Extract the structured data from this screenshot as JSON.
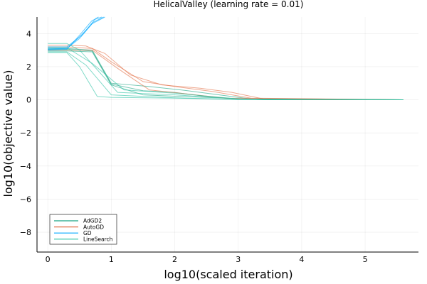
{
  "chart_data": {
    "type": "line",
    "title": "HelicalValley (learning rate = 0.01)",
    "xlabel": "log10(scaled iteration)",
    "ylabel": "log10(objective value)",
    "xlim": [
      -0.17,
      5.84
    ],
    "ylim": [
      -9.2,
      5.0
    ],
    "xticks": [
      0,
      1,
      2,
      3,
      4,
      5
    ],
    "yticks": [
      -8,
      -6,
      -4,
      -2,
      0,
      2,
      4
    ],
    "grid": true,
    "legend_position": "bottom-left",
    "series": [
      {
        "name": "AdGD2",
        "color": "#1aa583",
        "lines": [
          [
            [
              0,
              3.05
            ],
            [
              0.3,
              3.05
            ],
            [
              0.7,
              2.95
            ],
            [
              1.0,
              0.95
            ],
            [
              1.5,
              0.55
            ],
            [
              2.0,
              0.45
            ],
            [
              2.5,
              0.2
            ],
            [
              3.0,
              0.05
            ],
            [
              3.5,
              0.0
            ],
            [
              5.6,
              0.0
            ]
          ],
          [
            [
              0,
              3.1
            ],
            [
              0.3,
              3.1
            ],
            [
              0.7,
              3.0
            ],
            [
              1.0,
              1.0
            ],
            [
              1.6,
              0.8
            ],
            [
              2.2,
              0.55
            ],
            [
              2.7,
              0.3
            ],
            [
              3.2,
              0.05
            ],
            [
              5.6,
              0.0
            ]
          ],
          [
            [
              0,
              2.95
            ],
            [
              0.3,
              2.95
            ],
            [
              0.7,
              2.9
            ],
            [
              1.0,
              0.9
            ],
            [
              1.5,
              0.3
            ],
            [
              2.1,
              0.2
            ],
            [
              2.8,
              0.1
            ],
            [
              3.4,
              0.0
            ],
            [
              5.6,
              0.0
            ]
          ]
        ]
      },
      {
        "name": "AutoGD",
        "color": "#e26f46",
        "lines": [
          [
            [
              0,
              3.3
            ],
            [
              0.3,
              3.3
            ],
            [
              0.6,
              3.25
            ],
            [
              0.9,
              2.8
            ],
            [
              1.3,
              1.5
            ],
            [
              1.8,
              0.9
            ],
            [
              2.4,
              0.7
            ],
            [
              2.9,
              0.45
            ],
            [
              3.4,
              0.05
            ],
            [
              4.0,
              0.0
            ],
            [
              5.6,
              0.0
            ]
          ],
          [
            [
              0,
              3.2
            ],
            [
              0.3,
              3.2
            ],
            [
              0.7,
              3.1
            ],
            [
              1.0,
              2.3
            ],
            [
              1.5,
              1.1
            ],
            [
              2.0,
              0.8
            ],
            [
              2.6,
              0.5
            ],
            [
              3.2,
              0.1
            ],
            [
              5.6,
              0.0
            ]
          ],
          [
            [
              0,
              3.0
            ],
            [
              0.3,
              3.0
            ],
            [
              0.7,
              3.0
            ],
            [
              1.1,
              1.9
            ],
            [
              1.6,
              0.6
            ],
            [
              2.2,
              0.35
            ],
            [
              2.8,
              0.1
            ],
            [
              5.6,
              0.0
            ]
          ]
        ]
      },
      {
        "name": "GD",
        "color": "#00a9ff",
        "lines": [
          [
            [
              0,
              3.1
            ],
            [
              0.3,
              3.1
            ],
            [
              0.5,
              3.8
            ],
            [
              0.7,
              4.6
            ],
            [
              0.9,
              5.2
            ]
          ],
          [
            [
              0,
              3.0
            ],
            [
              0.3,
              3.05
            ],
            [
              0.5,
              3.9
            ],
            [
              0.7,
              4.8
            ],
            [
              0.85,
              5.2
            ]
          ],
          [
            [
              0,
              3.2
            ],
            [
              0.3,
              3.2
            ],
            [
              0.55,
              3.95
            ],
            [
              0.75,
              4.9
            ],
            [
              0.8,
              5.2
            ]
          ],
          [
            [
              0,
              3.05
            ],
            [
              0.3,
              3.1
            ],
            [
              0.5,
              3.7
            ],
            [
              0.72,
              4.7
            ],
            [
              0.88,
              5.2
            ]
          ]
        ]
      },
      {
        "name": "LineSearch",
        "color": "#2fc3a5",
        "lines": [
          [
            [
              0,
              2.85
            ],
            [
              0.3,
              2.85
            ],
            [
              0.5,
              2.0
            ],
            [
              0.78,
              0.2
            ],
            [
              1.0,
              0.15
            ],
            [
              2.0,
              0.1
            ],
            [
              3.0,
              0.02
            ],
            [
              5.6,
              0.0
            ]
          ],
          [
            [
              0,
              3.4
            ],
            [
              0.3,
              3.4
            ],
            [
              0.5,
              3.0
            ],
            [
              1.1,
              0.45
            ],
            [
              2.0,
              0.3
            ],
            [
              3.0,
              0.05
            ],
            [
              5.6,
              0.0
            ]
          ],
          [
            [
              0,
              2.9
            ],
            [
              0.3,
              2.9
            ],
            [
              0.6,
              2.1
            ],
            [
              1.0,
              0.3
            ],
            [
              2.0,
              0.12
            ],
            [
              3.0,
              0.02
            ],
            [
              5.6,
              0.0
            ]
          ],
          [
            [
              0,
              3.15
            ],
            [
              0.3,
              3.15
            ],
            [
              0.7,
              2.2
            ],
            [
              1.2,
              0.6
            ],
            [
              2.0,
              0.4
            ],
            [
              3.0,
              0.05
            ],
            [
              5.6,
              0.0
            ]
          ]
        ]
      }
    ]
  }
}
